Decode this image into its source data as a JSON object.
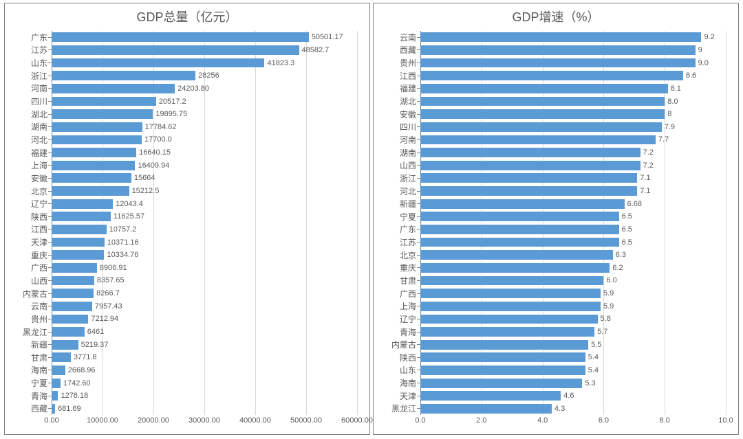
{
  "background_color": "#ffffff",
  "panel_border_color": "#7f7f7f",
  "bar_color": "#5b9bd5",
  "grid_color": "#d9d9d9",
  "axis_line_color": "#808080",
  "text_color": "#595959",
  "title_fontsize": 18,
  "label_fontsize": 12,
  "value_fontsize": 11,
  "tick_fontsize": 11,
  "bar_height_ratio": 0.74,
  "left_chart": {
    "title": "GDP总量（亿元）",
    "type": "bar-horizontal",
    "xlim": [
      0,
      60000
    ],
    "xtick_step": 10000,
    "xticks": [
      "0.00",
      "10000.00",
      "20000.00",
      "30000.00",
      "40000.00",
      "50000.00",
      "60000.00"
    ],
    "data": [
      {
        "label": "广东",
        "value": 50501.17,
        "display": "50501.17"
      },
      {
        "label": "江苏",
        "value": 48582.7,
        "display": "48582.7"
      },
      {
        "label": "山东",
        "value": 41823.3,
        "display": "41823.3"
      },
      {
        "label": "浙江",
        "value": 28256,
        "display": "28256"
      },
      {
        "label": "河南",
        "value": 24203.8,
        "display": "24203.80"
      },
      {
        "label": "四川",
        "value": 20517.2,
        "display": "20517.2"
      },
      {
        "label": "湖北",
        "value": 19895.75,
        "display": "19895.75"
      },
      {
        "label": "湖南",
        "value": 17784.62,
        "display": "17784.62"
      },
      {
        "label": "河北",
        "value": 17700.0,
        "display": "17700.0"
      },
      {
        "label": "福建",
        "value": 16640.15,
        "display": "16640.15"
      },
      {
        "label": "上海",
        "value": 16409.94,
        "display": "16409.94"
      },
      {
        "label": "安徽",
        "value": 15664,
        "display": "15664"
      },
      {
        "label": "北京",
        "value": 15212.5,
        "display": "15212.5"
      },
      {
        "label": "辽宁",
        "value": 12043.4,
        "display": "12043.4"
      },
      {
        "label": "陕西",
        "value": 11625.57,
        "display": "11625.57"
      },
      {
        "label": "江西",
        "value": 10757.2,
        "display": "10757.2"
      },
      {
        "label": "天津",
        "value": 10371.16,
        "display": "10371.16"
      },
      {
        "label": "重庆",
        "value": 10334.76,
        "display": "10334.76"
      },
      {
        "label": "广西",
        "value": 8906.91,
        "display": "8906.91"
      },
      {
        "label": "山西",
        "value": 8357.65,
        "display": "8357.65"
      },
      {
        "label": "内蒙古",
        "value": 8266.7,
        "display": "8266.7"
      },
      {
        "label": "云南",
        "value": 7957.43,
        "display": "7957.43"
      },
      {
        "label": "贵州",
        "value": 7212.94,
        "display": "7212.94"
      },
      {
        "label": "黑龙江",
        "value": 6461,
        "display": "6461"
      },
      {
        "label": "新疆",
        "value": 5219.37,
        "display": "5219.37"
      },
      {
        "label": "甘肃",
        "value": 3771.8,
        "display": "3771.8"
      },
      {
        "label": "海南",
        "value": 2668.96,
        "display": "2668.96"
      },
      {
        "label": "宁夏",
        "value": 1742.6,
        "display": "1742.60"
      },
      {
        "label": "青海",
        "value": 1278.18,
        "display": "1278.18"
      },
      {
        "label": "西藏",
        "value": 681.69,
        "display": "681.69"
      }
    ]
  },
  "right_chart": {
    "title": "GDP增速（%）",
    "type": "bar-horizontal",
    "xlim": [
      0,
      10
    ],
    "xtick_step": 2,
    "xticks": [
      "0.0",
      "2.0",
      "4.0",
      "6.0",
      "8.0",
      "10.0"
    ],
    "data": [
      {
        "label": "云南",
        "value": 9.2,
        "display": "9.2"
      },
      {
        "label": "西藏",
        "value": 9.0,
        "display": "9"
      },
      {
        "label": "贵州",
        "value": 9.0,
        "display": "9.0"
      },
      {
        "label": "江西",
        "value": 8.6,
        "display": "8.6"
      },
      {
        "label": "福建",
        "value": 8.1,
        "display": "8.1"
      },
      {
        "label": "湖北",
        "value": 8.0,
        "display": "8.0"
      },
      {
        "label": "安徽",
        "value": 8.0,
        "display": "8"
      },
      {
        "label": "四川",
        "value": 7.9,
        "display": "7.9"
      },
      {
        "label": "河南",
        "value": 7.7,
        "display": "7.7"
      },
      {
        "label": "湖南",
        "value": 7.2,
        "display": "7.2"
      },
      {
        "label": "山西",
        "value": 7.2,
        "display": "7.2"
      },
      {
        "label": "浙江",
        "value": 7.1,
        "display": "7.1"
      },
      {
        "label": "河北",
        "value": 7.1,
        "display": "7.1"
      },
      {
        "label": "新疆",
        "value": 6.68,
        "display": "6.68"
      },
      {
        "label": "宁夏",
        "value": 6.5,
        "display": "6.5"
      },
      {
        "label": "广东",
        "value": 6.5,
        "display": "6.5"
      },
      {
        "label": "江苏",
        "value": 6.5,
        "display": "6.5"
      },
      {
        "label": "北京",
        "value": 6.3,
        "display": "6.3"
      },
      {
        "label": "重庆",
        "value": 6.2,
        "display": "6.2"
      },
      {
        "label": "甘肃",
        "value": 6.0,
        "display": "6.0"
      },
      {
        "label": "广西",
        "value": 5.9,
        "display": "5.9"
      },
      {
        "label": "上海",
        "value": 5.9,
        "display": "5.9"
      },
      {
        "label": "辽宁",
        "value": 5.8,
        "display": "5.8"
      },
      {
        "label": "青海",
        "value": 5.7,
        "display": "5.7"
      },
      {
        "label": "内蒙古",
        "value": 5.5,
        "display": "5.5"
      },
      {
        "label": "陕西",
        "value": 5.4,
        "display": "5.4"
      },
      {
        "label": "山东",
        "value": 5.4,
        "display": "5.4"
      },
      {
        "label": "海南",
        "value": 5.3,
        "display": "5.3"
      },
      {
        "label": "天津",
        "value": 4.6,
        "display": "4.6"
      },
      {
        "label": "黑龙江",
        "value": 4.3,
        "display": "4.3"
      }
    ]
  }
}
